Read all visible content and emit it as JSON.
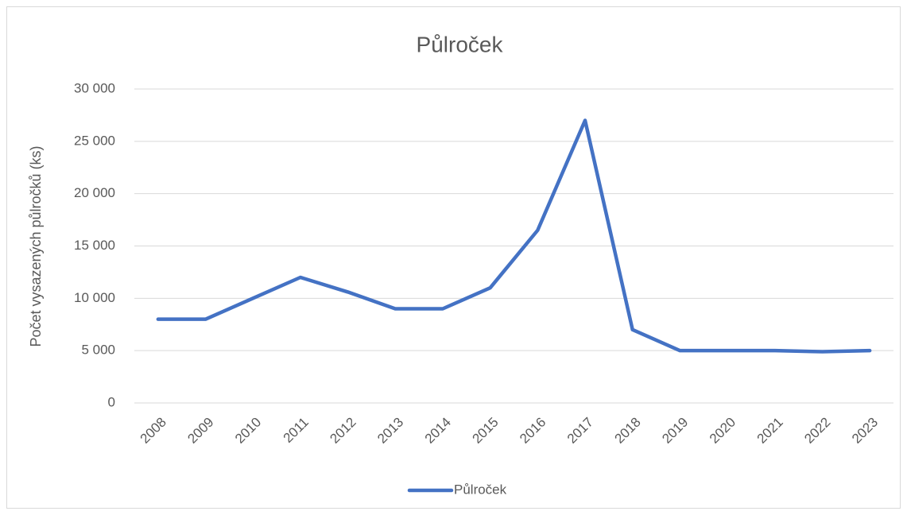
{
  "chart_data": {
    "type": "line",
    "title": "Půlroček",
    "ylabel": "Počet vysazených půlročků (ks)",
    "categories": [
      "2008",
      "2009",
      "2010",
      "2011",
      "2012",
      "2013",
      "2014",
      "2015",
      "2016",
      "2017",
      "2018",
      "2019",
      "2020",
      "2021",
      "2022",
      "2023"
    ],
    "series": [
      {
        "name": "Půlroček",
        "color": "#4472c4",
        "values": [
          8000,
          8000,
          10000,
          12000,
          10600,
          9000,
          9000,
          11000,
          16500,
          27000,
          7000,
          5000,
          5000,
          5000,
          4900,
          5000
        ]
      }
    ],
    "ylim": [
      0,
      30000
    ],
    "yticks": [
      0,
      {
        "value": 5000,
        "label": "5 000"
      },
      {
        "value": 10000,
        "label": "10 000"
      },
      {
        "value": 15000,
        "label": "15 000"
      },
      {
        "value": 20000,
        "label": "20 000"
      },
      {
        "value": 25000,
        "label": "25 000"
      },
      {
        "value": 30000,
        "label": "30 000"
      }
    ],
    "grid": true,
    "legend": "bottom"
  }
}
